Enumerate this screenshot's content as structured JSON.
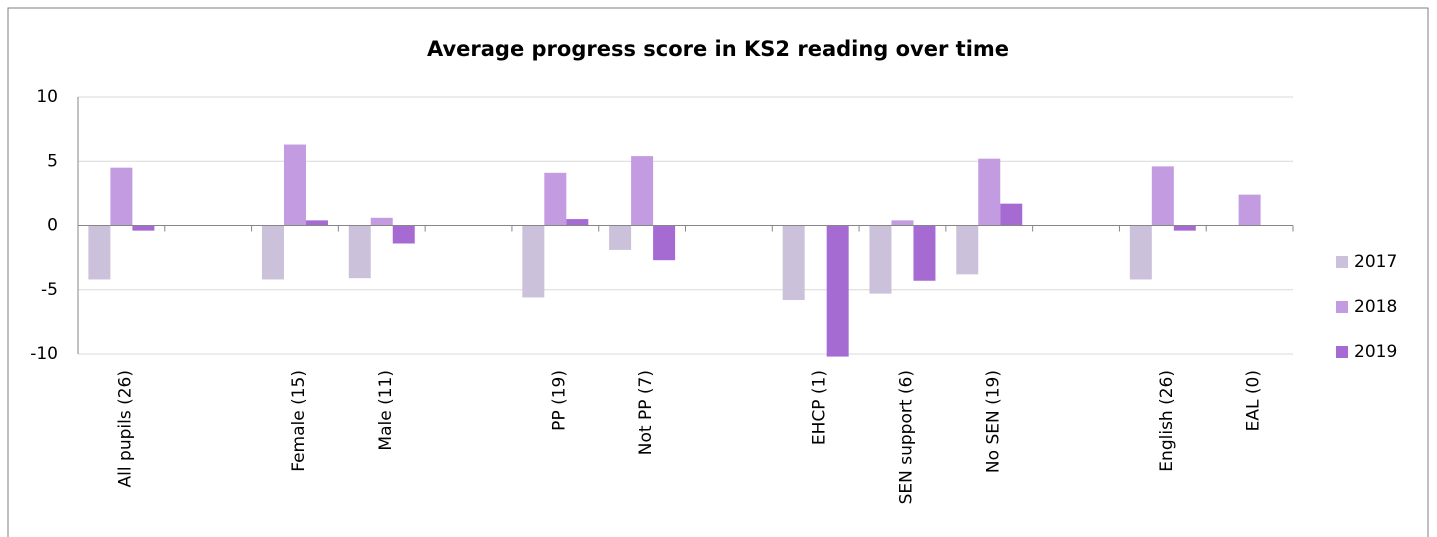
{
  "chart_data": {
    "type": "bar",
    "title": "Average progress score in KS2 reading over time",
    "categories": [
      "All pupils (26)",
      null,
      "Female (15)",
      "Male (11)",
      null,
      "PP (19)",
      "Not PP (7)",
      null,
      "EHCP (1)",
      "SEN support (6)",
      "No SEN (19)",
      null,
      "English (26)",
      "EAL (0)"
    ],
    "series": [
      {
        "name": "2017",
        "color": "#ccc1da",
        "values": [
          -4.2,
          null,
          -4.2,
          -4.1,
          null,
          -5.6,
          -1.9,
          null,
          -5.8,
          -5.3,
          -3.8,
          null,
          -4.2,
          null
        ]
      },
      {
        "name": "2018",
        "color": "#c39be0",
        "values": [
          4.5,
          null,
          6.3,
          0.6,
          null,
          4.1,
          5.4,
          null,
          null,
          0.4,
          5.2,
          null,
          4.6,
          2.4
        ]
      },
      {
        "name": "2019",
        "color": "#a66bd3",
        "values": [
          -0.4,
          null,
          0.4,
          -1.4,
          null,
          0.5,
          -2.7,
          null,
          -10.2,
          -4.3,
          1.7,
          null,
          -0.4,
          null
        ]
      }
    ],
    "ylim": [
      -10,
      10
    ],
    "yticks": [
      10,
      5,
      0,
      -5,
      -10
    ],
    "grid": true,
    "legend": "right"
  }
}
